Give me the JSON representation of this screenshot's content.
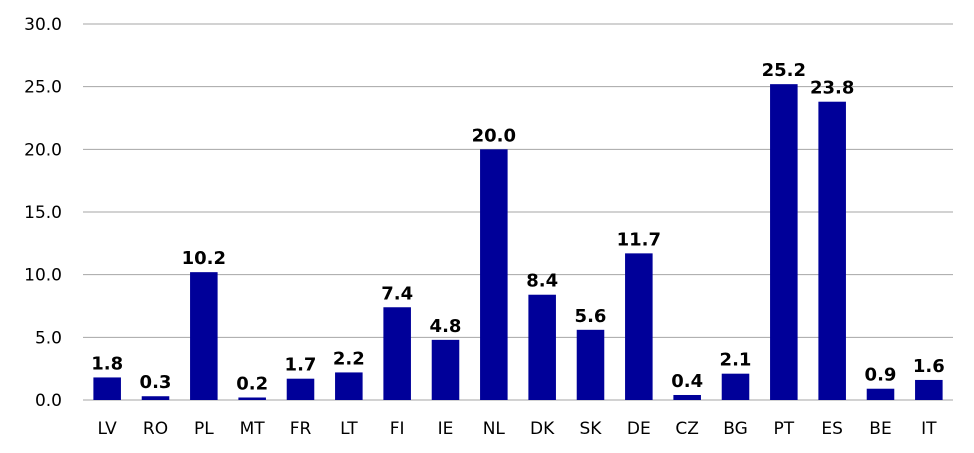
{
  "chart_data": {
    "type": "bar",
    "title": "",
    "xlabel": "",
    "ylabel": "",
    "categories": [
      "LV",
      "RO",
      "PL",
      "MT",
      "FR",
      "LT",
      "FI",
      "IE",
      "NL",
      "DK",
      "SK",
      "DE",
      "CZ",
      "BG",
      "PT",
      "ES",
      "BE",
      "IT"
    ],
    "values": [
      1.8,
      0.3,
      10.2,
      0.2,
      1.7,
      2.2,
      7.4,
      4.8,
      20.0,
      8.4,
      5.6,
      11.7,
      0.4,
      2.1,
      25.2,
      23.8,
      0.9,
      1.6
    ],
    "data_labels": [
      "1.8",
      "0.3",
      "10.2",
      "0.2",
      "1.7",
      "2.2",
      "7.4",
      "4.8",
      "20.0",
      "8.4",
      "5.6",
      "11.7",
      "0.4",
      "2.1",
      "25.2",
      "23.8",
      "0.9",
      "1.6"
    ],
    "ylim": [
      0,
      30
    ],
    "yticks": [
      "0.0",
      "5.0",
      "10.0",
      "15.0",
      "20.0",
      "25.0",
      "30.0"
    ],
    "grid": true,
    "legend": "none",
    "bar_color": "#000099"
  }
}
